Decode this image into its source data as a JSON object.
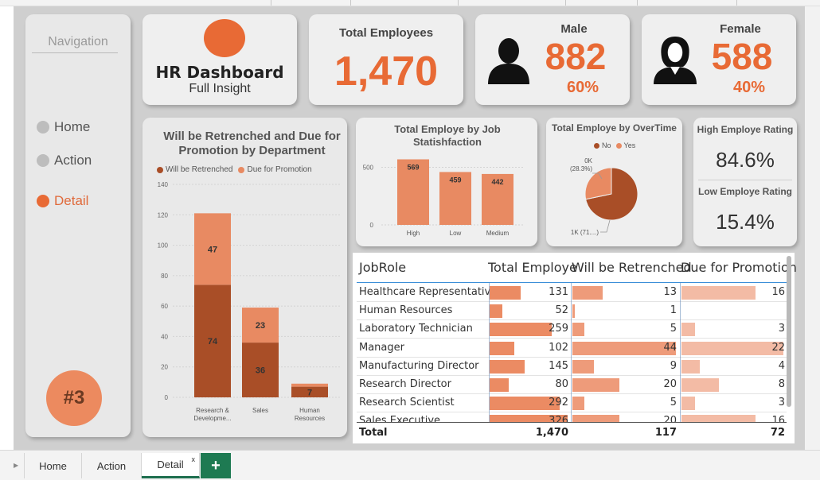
{
  "navigation": {
    "title": "Navigation",
    "items": [
      {
        "label": "Home",
        "active": false
      },
      {
        "label": "Action",
        "active": false
      },
      {
        "label": "Detail",
        "active": true
      }
    ],
    "page_badge": "#3"
  },
  "header": {
    "title": "HR Dashboard",
    "subtitle": "Full Insight"
  },
  "kpis": {
    "total_label": "Total Employees",
    "total_value": "1,470",
    "male_label": "Male",
    "male_value": "882",
    "male_pct": "60%",
    "female_label": "Female",
    "female_value": "588",
    "female_pct": "40%"
  },
  "ratings": {
    "high_label": "High Employe Rating",
    "high_value": "84.6%",
    "low_label": "Low Employe Rating",
    "low_value": "15.4%"
  },
  "colors": {
    "accent": "#e86a35",
    "dark_series": "#a94e27",
    "light_series": "#e88a62",
    "table_bar_employe": "#eb8b63",
    "table_bar_retrench": "#ee9b7a",
    "table_bar_promo": "#f3bba5"
  },
  "chart_data": [
    {
      "type": "bar",
      "stacked": true,
      "title": "Will be Retrenched and Due for Promotion by Department",
      "categories": [
        "Research & Developme...",
        "Sales",
        "Human Resources"
      ],
      "series": [
        {
          "name": "Will be Retrenched",
          "values": [
            74,
            36,
            7
          ]
        },
        {
          "name": "Due for Promotion",
          "values": [
            47,
            23,
            2
          ]
        }
      ],
      "data_labels": [
        [
          "74",
          "36",
          "7"
        ],
        [
          "47",
          "23",
          ""
        ]
      ],
      "ylim": [
        0,
        140
      ],
      "yticks": [
        0,
        20,
        40,
        60,
        80,
        100,
        120,
        140
      ],
      "legend": "top-left",
      "grid": true
    },
    {
      "type": "bar",
      "title": "Total Employe by Job Statishfaction",
      "categories": [
        "High",
        "Low",
        "Medium"
      ],
      "values": [
        569,
        459,
        442
      ],
      "ylim": [
        0,
        600
      ],
      "yticks": [
        0,
        500
      ],
      "grid": true
    },
    {
      "type": "pie",
      "title": "Total Employe by OverTime",
      "legend": "top",
      "series": [
        {
          "name": "No",
          "value": 1054
        },
        {
          "name": "Yes",
          "value": 416
        }
      ],
      "labels": [
        "1K (71....)",
        "0K (28.3%)"
      ]
    }
  ],
  "table": {
    "headers": [
      "JobRole",
      "Total Employe",
      "Will be Retrenched",
      "Due for Promotion"
    ],
    "rows": [
      {
        "role": "Healthcare Representative",
        "total": 131,
        "retrench": 13,
        "promo": 16
      },
      {
        "role": "Human Resources",
        "total": 52,
        "retrench": 1,
        "promo": null
      },
      {
        "role": "Laboratory Technician",
        "total": 259,
        "retrench": 5,
        "promo": 3
      },
      {
        "role": "Manager",
        "total": 102,
        "retrench": 44,
        "promo": 22
      },
      {
        "role": "Manufacturing Director",
        "total": 145,
        "retrench": 9,
        "promo": 4
      },
      {
        "role": "Research Director",
        "total": 80,
        "retrench": 20,
        "promo": 8
      },
      {
        "role": "Research Scientist",
        "total": 292,
        "retrench": 5,
        "promo": 3
      },
      {
        "role": "Sales Executive",
        "total": 326,
        "retrench": 20,
        "promo": 16
      }
    ],
    "totals": {
      "label": "Total",
      "total": "1,470",
      "retrench": "117",
      "promo": "72"
    }
  },
  "tabs": {
    "items": [
      {
        "label": "Home",
        "active": false
      },
      {
        "label": "Action",
        "active": false
      },
      {
        "label": "Detail",
        "active": true
      }
    ],
    "close_glyph": "x",
    "add_glyph": "+"
  }
}
